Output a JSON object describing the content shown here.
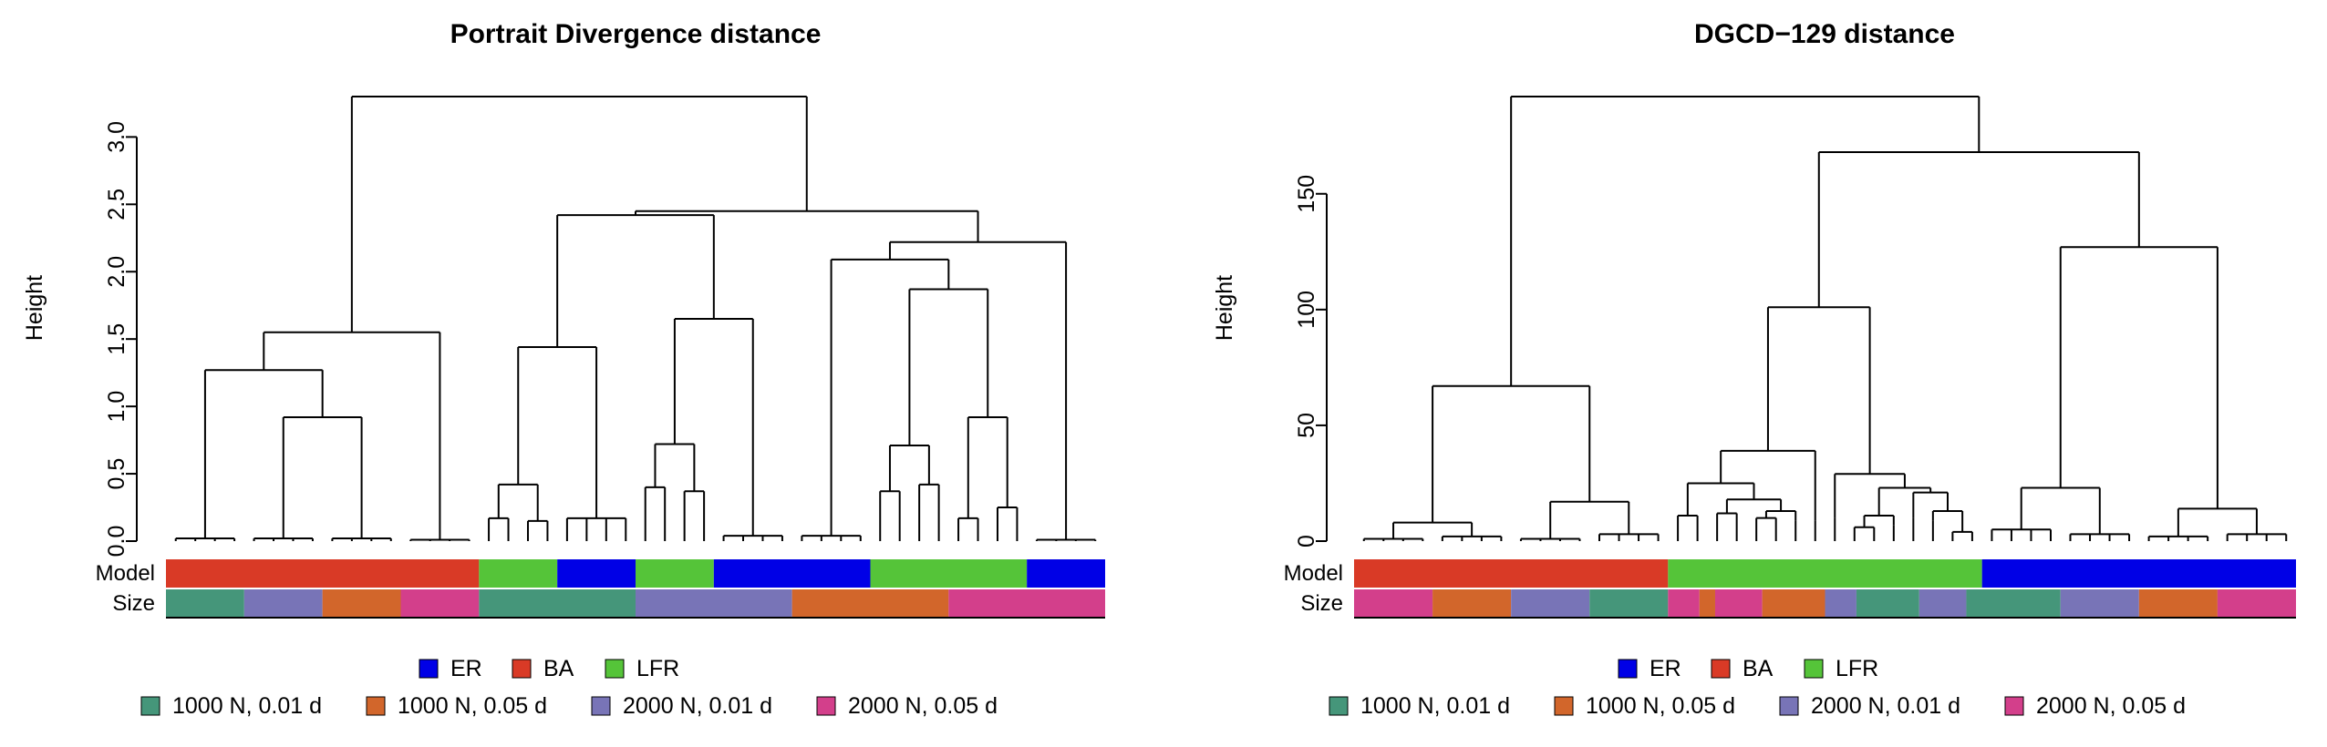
{
  "colors": {
    "ER": "#0000e6",
    "BA": "#d93a26",
    "LFR": "#55c439",
    "1000 N, 0.01 d": "#45967a",
    "1000 N, 0.05 d": "#d2662b",
    "2000 N, 0.01 d": "#7874b7",
    "2000 N, 0.05 d": "#d33f8b"
  },
  "row_labels": {
    "model": "Model",
    "size": "Size"
  },
  "legend": {
    "model": [
      "ER",
      "BA",
      "LFR"
    ],
    "size": [
      "1000 N, 0.01 d",
      "1000 N, 0.05 d",
      "2000 N, 0.01 d",
      "2000 N, 0.05 d"
    ]
  },
  "chart_data": [
    {
      "type": "dendrogram",
      "title": "Portrait Divergence distance",
      "ylabel": "Height",
      "ylim": [
        0,
        3.3
      ],
      "yticks": [
        0.0,
        0.5,
        1.0,
        1.5,
        2.0,
        2.5,
        3.0
      ],
      "ytick_labels": [
        "0.0",
        "0.5",
        "1.0",
        "1.5",
        "2.0",
        "2.5",
        "3.0"
      ],
      "n_leaves": 48,
      "model_strip": [
        [
          "BA",
          16
        ],
        [
          "LFR",
          4
        ],
        [
          "ER",
          4
        ],
        [
          "LFR",
          4
        ],
        [
          "ER",
          8
        ],
        [
          "LFR",
          8
        ],
        [
          "ER",
          4
        ]
      ],
      "size_strip": [
        [
          "1000 N, 0.01 d",
          4
        ],
        [
          "2000 N, 0.01 d",
          4
        ],
        [
          "1000 N, 0.05 d",
          4
        ],
        [
          "2000 N, 0.05 d",
          4
        ],
        [
          "1000 N, 0.01 d",
          8
        ],
        [
          "2000 N, 0.01 d",
          8
        ],
        [
          "1000 N, 0.05 d",
          8
        ],
        [
          "2000 N, 0.05 d",
          8
        ]
      ],
      "tree": {
        "h": 3.3,
        "c": [
          {
            "h": 1.55,
            "c": [
              {
                "h": 1.27,
                "c": [
                  {
                    "h": 0.02,
                    "n": 4
                  },
                  {
                    "h": 0.92,
                    "c": [
                      {
                        "h": 0.02,
                        "n": 4
                      },
                      {
                        "h": 0.02,
                        "n": 4
                      }
                    ]
                  }
                ]
              },
              {
                "h": 0.01,
                "n": 4
              }
            ]
          },
          {
            "h": 2.45,
            "c": [
              {
                "h": 2.42,
                "c": [
                  {
                    "h": 1.44,
                    "c": [
                      {
                        "h": 0.42,
                        "c": [
                          {
                            "h": 0.17,
                            "n": 2
                          },
                          {
                            "h": 0.15,
                            "n": 2
                          }
                        ]
                      },
                      {
                        "h": 0.17,
                        "n": 4
                      }
                    ]
                  },
                  {
                    "h": 1.65,
                    "c": [
                      {
                        "h": 0.72,
                        "c": [
                          {
                            "h": 0.4,
                            "n": 2
                          },
                          {
                            "h": 0.37,
                            "n": 2
                          }
                        ]
                      },
                      {
                        "h": 0.04,
                        "n": 4
                      }
                    ]
                  }
                ]
              },
              {
                "h": 2.22,
                "c": [
                  {
                    "h": 2.09,
                    "c": [
                      {
                        "h": 0.04,
                        "n": 4
                      },
                      {
                        "h": 1.87,
                        "c": [
                          {
                            "h": 0.71,
                            "c": [
                              {
                                "h": 0.37,
                                "n": 2
                              },
                              {
                                "h": 0.42,
                                "n": 2
                              }
                            ]
                          },
                          {
                            "h": 0.92,
                            "c": [
                              {
                                "h": 0.17,
                                "n": 2
                              },
                              {
                                "h": 0.25,
                                "n": 2
                              }
                            ]
                          }
                        ]
                      }
                    ]
                  },
                  {
                    "h": 0.01,
                    "n": 4
                  }
                ]
              }
            ]
          }
        ]
      }
    },
    {
      "type": "dendrogram",
      "title": "DGCD−129 distance",
      "ylabel": "Height",
      "ylim": [
        0,
        192
      ],
      "yticks": [
        0,
        50,
        100,
        150
      ],
      "ytick_labels": [
        "0",
        "50",
        "100",
        "150"
      ],
      "n_leaves": 48,
      "model_strip": [
        [
          "BA",
          16
        ],
        [
          "LFR",
          16
        ],
        [
          "ER",
          16
        ]
      ],
      "size_strip": [
        [
          "2000 N, 0.05 d",
          4
        ],
        [
          "1000 N, 0.05 d",
          4
        ],
        [
          "2000 N, 0.01 d",
          4
        ],
        [
          "1000 N, 0.01 d",
          4
        ],
        [
          "2000 N, 0.05 d",
          1.6
        ],
        [
          "1000 N, 0.05 d",
          0.8
        ],
        [
          "2000 N, 0.05 d",
          2.4
        ],
        [
          "1000 N, 0.05 d",
          3.2
        ],
        [
          "2000 N, 0.01 d",
          1.6
        ],
        [
          "1000 N, 0.01 d",
          3.2
        ],
        [
          "2000 N, 0.01 d",
          2.4
        ],
        [
          "1000 N, 0.01 d",
          4.8
        ],
        [
          "2000 N, 0.01 d",
          4
        ],
        [
          "1000 N, 0.05 d",
          4
        ],
        [
          "2000 N, 0.05 d",
          4
        ]
      ],
      "tree": {
        "h": 192,
        "c": [
          {
            "h": 67,
            "c": [
              {
                "h": 8,
                "c": [
                  {
                    "h": 1,
                    "n": 4
                  },
                  {
                    "h": 2,
                    "n": 4
                  }
                ]
              },
              {
                "h": 17,
                "c": [
                  {
                    "h": 1,
                    "n": 4
                  },
                  {
                    "h": 3,
                    "n": 4
                  }
                ]
              }
            ]
          },
          {
            "h": 168,
            "c": [
              {
                "h": 101,
                "c": [
                  {
                    "h": 39,
                    "c": [
                      {
                        "h": 25,
                        "c": [
                          {
                            "h": 11,
                            "n": 2
                          },
                          {
                            "h": 18,
                            "c": [
                              {
                                "h": 12,
                                "n": 2
                              },
                              {
                                "h": 13,
                                "c": [
                                  {
                                    "h": 10,
                                    "n": 2
                                  },
                                  {
                                    "h": 9,
                                    "n": 1
                                  }
                                ]
                              }
                            ]
                          }
                        ]
                      },
                      {
                        "h": 9,
                        "n": 1
                      }
                    ]
                  },
                  {
                    "h": 29,
                    "c": [
                      {
                        "h": 10,
                        "n": 1
                      },
                      {
                        "h": 23,
                        "c": [
                          {
                            "h": 11,
                            "c": [
                              {
                                "h": 6,
                                "n": 2
                              },
                              {
                                "h": 7,
                                "n": 1
                              }
                            ]
                          },
                          {
                            "h": 21,
                            "c": [
                              {
                                "h": 10,
                                "n": 1
                              },
                              {
                                "h": 13,
                                "c": [
                                  {
                                    "h": 9,
                                    "n": 1
                                  },
                                  {
                                    "h": 4,
                                    "n": 2
                                  }
                                ]
                              }
                            ]
                          }
                        ]
                      }
                    ]
                  }
                ]
              },
              {
                "h": 127,
                "c": [
                  {
                    "h": 23,
                    "c": [
                      {
                        "h": 5,
                        "n": 4
                      },
                      {
                        "h": 3,
                        "n": 4
                      }
                    ]
                  },
                  {
                    "h": 14,
                    "c": [
                      {
                        "h": 2,
                        "n": 4
                      },
                      {
                        "h": 3,
                        "n": 4
                      }
                    ]
                  }
                ]
              }
            ]
          }
        ]
      }
    }
  ]
}
